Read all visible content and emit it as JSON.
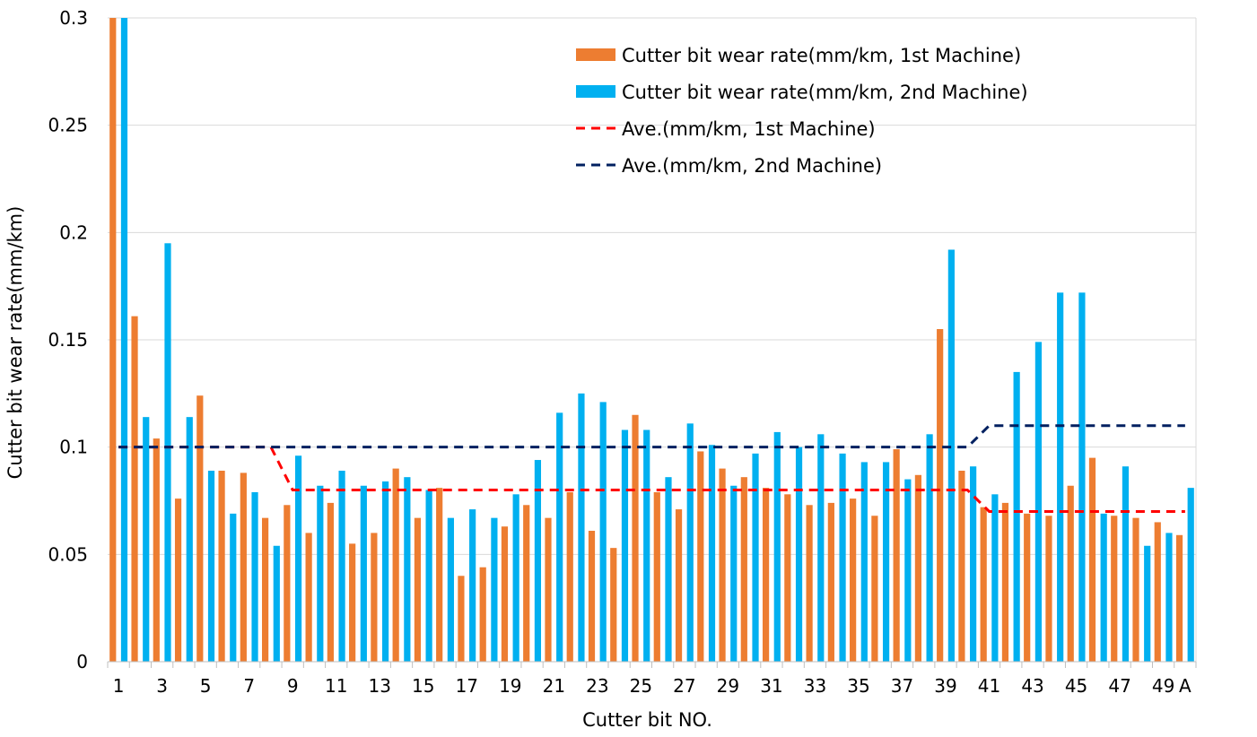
{
  "chart_data": {
    "type": "bar",
    "xlabel": "Cutter bit NO.",
    "ylabel": "Cutter bit wear rate(mm/km)",
    "ylim": [
      0,
      0.3
    ],
    "yticks": [
      "0",
      "0.05",
      "0.1",
      "0.15",
      "0.2",
      "0.25",
      "0.3"
    ],
    "grid": true,
    "legend_position": "top-right",
    "categories": [
      "1",
      "2",
      "3",
      "4",
      "5",
      "6",
      "7",
      "8",
      "9",
      "10",
      "11",
      "12",
      "13",
      "14",
      "15",
      "16",
      "17",
      "18",
      "19",
      "20",
      "21",
      "22",
      "23",
      "24",
      "25",
      "26",
      "27",
      "28",
      "29",
      "30",
      "31",
      "32",
      "33",
      "34",
      "35",
      "36",
      "37",
      "38",
      "39",
      "40",
      "41",
      "42",
      "43",
      "44",
      "45",
      "46",
      "47",
      "48",
      "49",
      "A"
    ],
    "category_labels": [
      "1",
      "",
      "3",
      "",
      "5",
      "",
      "7",
      "",
      "9",
      "",
      "11",
      "",
      "13",
      "",
      "15",
      "",
      "17",
      "",
      "19",
      "",
      "21",
      "",
      "23",
      "",
      "25",
      "",
      "27",
      "",
      "29",
      "",
      "31",
      "",
      "33",
      "",
      "35",
      "",
      "37",
      "",
      "39",
      "",
      "41",
      "",
      "43",
      "",
      "45",
      "",
      "47",
      "",
      "49",
      "A"
    ],
    "series": [
      {
        "name": "Cutter bit wear rate(mm/km, 1st Machine)",
        "kind": "bar",
        "color": "#ED7D31",
        "values": [
          0.3,
          0.161,
          0.104,
          0.076,
          0.124,
          0.089,
          0.088,
          0.067,
          0.073,
          0.06,
          0.074,
          0.055,
          0.06,
          0.09,
          0.067,
          0.081,
          0.04,
          0.044,
          0.063,
          0.073,
          0.067,
          0.079,
          0.061,
          0.053,
          0.115,
          0.079,
          0.071,
          0.098,
          0.09,
          0.086,
          0.081,
          0.078,
          0.073,
          0.074,
          0.076,
          0.068,
          0.099,
          0.087,
          0.155,
          0.089,
          0.072,
          0.074,
          0.069,
          0.068,
          0.082,
          0.095,
          0.068,
          0.067,
          0.065,
          0.059
        ]
      },
      {
        "name": "Cutter bit wear rate(mm/km, 2nd Machine)",
        "kind": "bar",
        "color": "#00B0F0",
        "values": [
          0.3,
          0.114,
          0.195,
          0.114,
          0.089,
          0.069,
          0.079,
          0.054,
          0.096,
          0.082,
          0.089,
          0.082,
          0.084,
          0.086,
          0.08,
          0.067,
          0.071,
          0.067,
          0.078,
          0.094,
          0.116,
          0.125,
          0.121,
          0.108,
          0.108,
          0.086,
          0.111,
          0.101,
          0.082,
          0.097,
          0.107,
          0.1,
          0.106,
          0.097,
          0.093,
          0.093,
          0.085,
          0.106,
          0.192,
          0.091,
          0.078,
          0.135,
          0.149,
          0.172,
          0.172,
          0.069,
          0.091,
          0.054,
          0.06,
          0.081
        ]
      },
      {
        "name": "Ave.(mm/km, 1st Machine)",
        "kind": "line",
        "style": "dashed",
        "color": "#FF0000",
        "values": [
          0.1,
          0.1,
          0.1,
          0.1,
          0.1,
          0.1,
          0.1,
          0.1,
          0.08,
          0.08,
          0.08,
          0.08,
          0.08,
          0.08,
          0.08,
          0.08,
          0.08,
          0.08,
          0.08,
          0.08,
          0.08,
          0.08,
          0.08,
          0.08,
          0.08,
          0.08,
          0.08,
          0.08,
          0.08,
          0.08,
          0.08,
          0.08,
          0.08,
          0.08,
          0.08,
          0.08,
          0.08,
          0.08,
          0.08,
          0.08,
          0.07,
          0.07,
          0.07,
          0.07,
          0.07,
          0.07,
          0.07,
          0.07,
          0.07,
          0.07
        ]
      },
      {
        "name": "Ave.(mm/km, 2nd Machine)",
        "kind": "line",
        "style": "dashed",
        "color": "#002060",
        "values": [
          0.1,
          0.1,
          0.1,
          0.1,
          0.1,
          0.1,
          0.1,
          0.1,
          0.1,
          0.1,
          0.1,
          0.1,
          0.1,
          0.1,
          0.1,
          0.1,
          0.1,
          0.1,
          0.1,
          0.1,
          0.1,
          0.1,
          0.1,
          0.1,
          0.1,
          0.1,
          0.1,
          0.1,
          0.1,
          0.1,
          0.1,
          0.1,
          0.1,
          0.1,
          0.1,
          0.1,
          0.1,
          0.1,
          0.1,
          0.1,
          0.11,
          0.11,
          0.11,
          0.11,
          0.11,
          0.11,
          0.11,
          0.11,
          0.11,
          0.11
        ]
      }
    ]
  }
}
